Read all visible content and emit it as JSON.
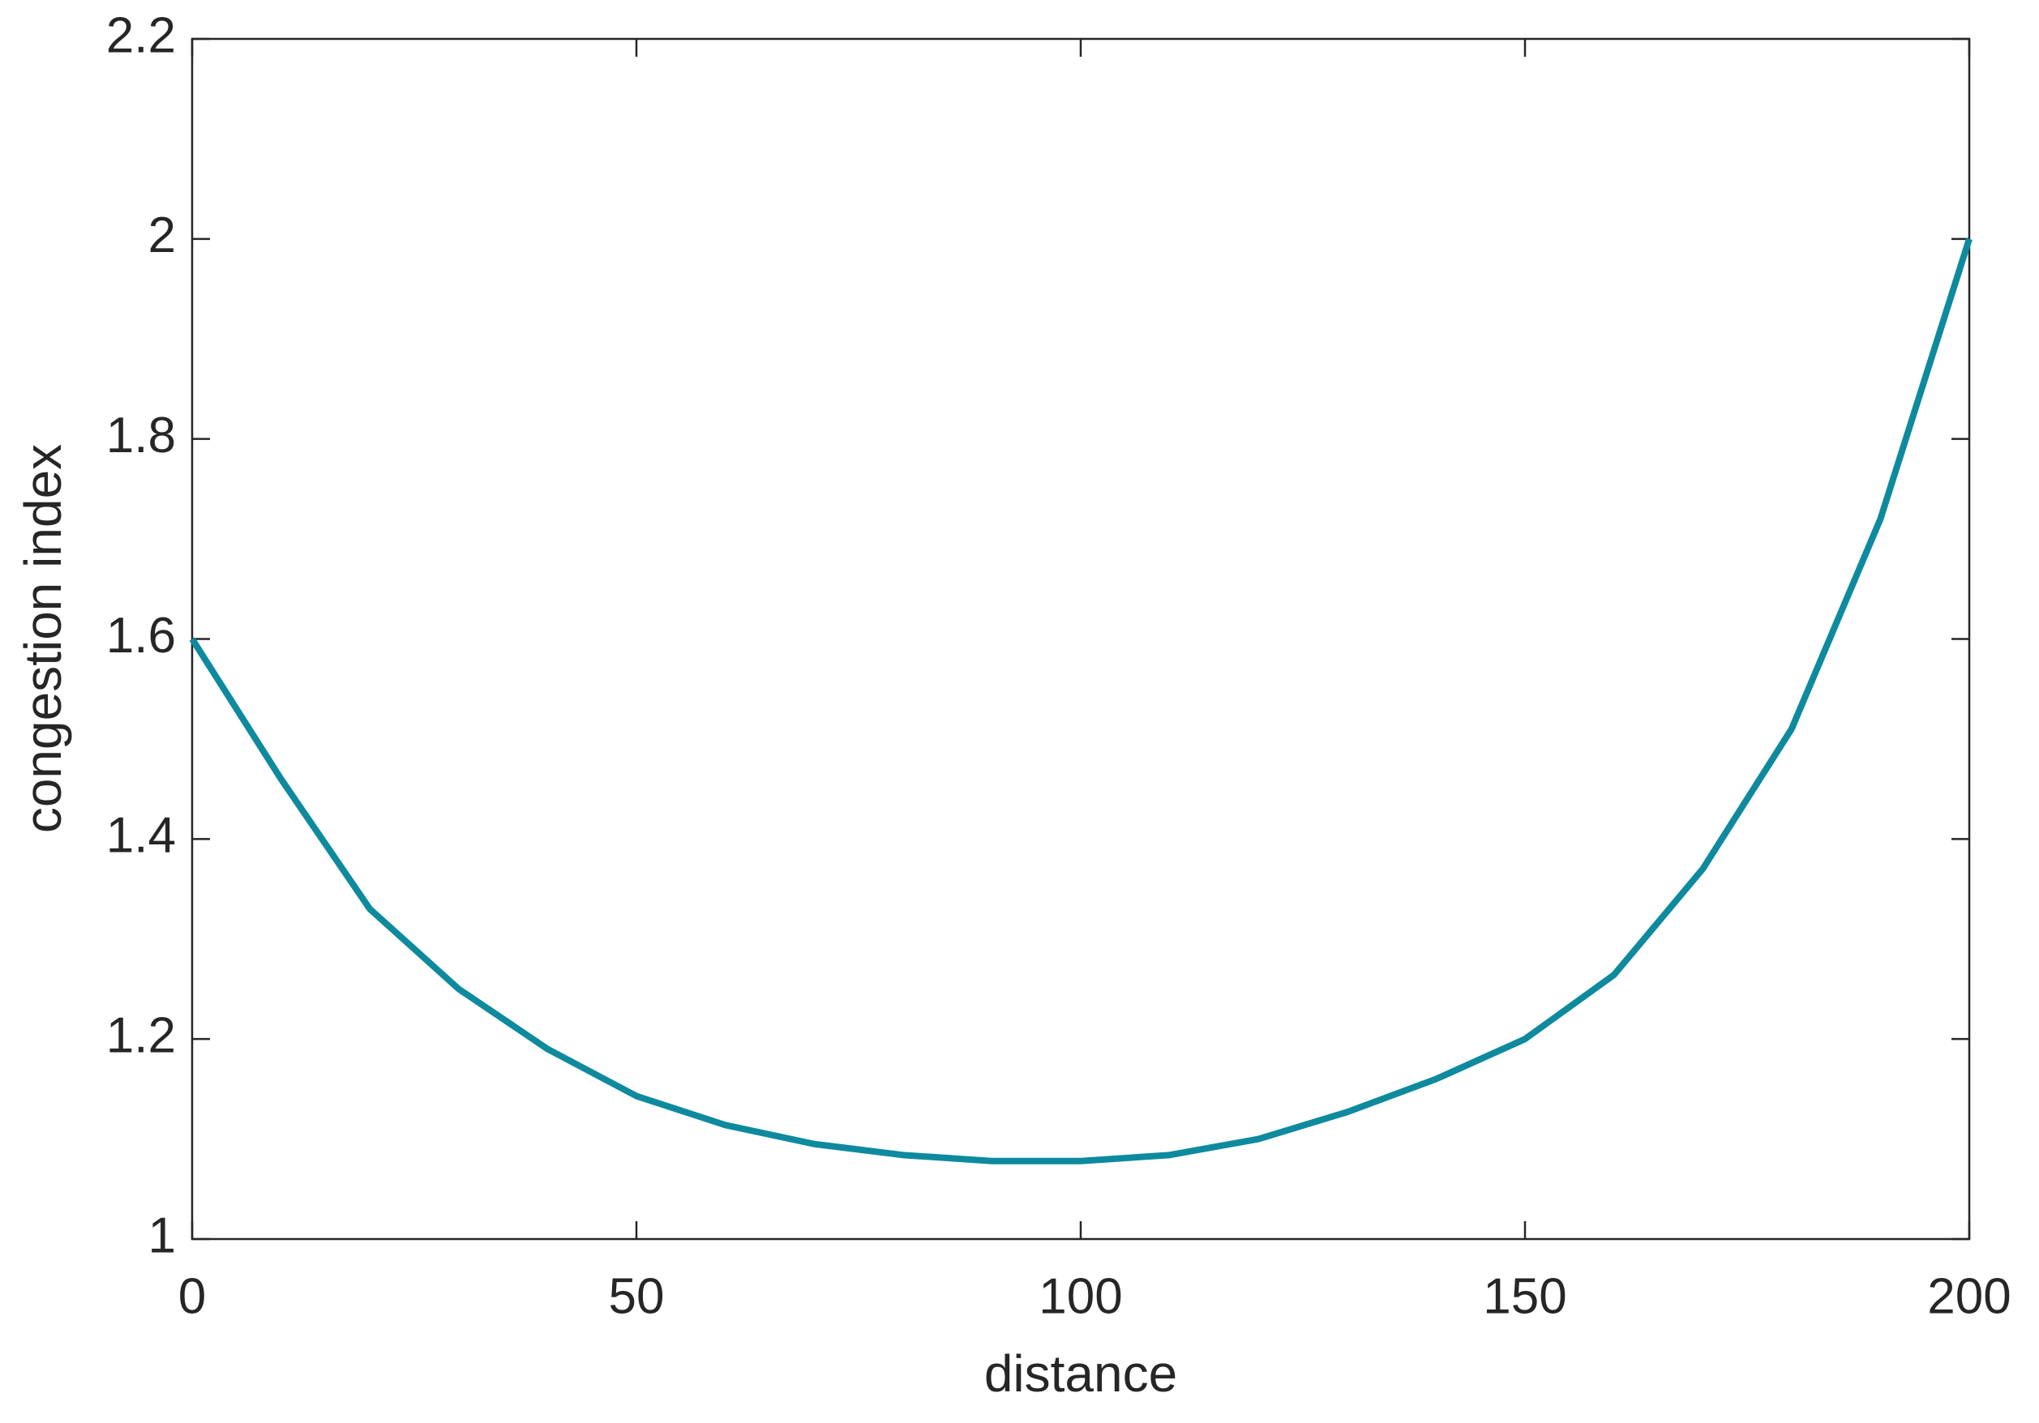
{
  "chart_data": {
    "type": "line",
    "x_label": "distance",
    "y_label": "congestion index",
    "x": [
      0,
      10,
      20,
      30,
      40,
      50,
      60,
      70,
      80,
      90,
      100,
      110,
      120,
      130,
      140,
      150,
      160,
      170,
      180,
      190,
      200
    ],
    "series": [
      {
        "color": "#0e8a9e",
        "values": [
          1.6,
          1.46,
          1.33,
          1.25,
          1.19,
          1.143,
          1.114,
          1.095,
          1.084,
          1.078,
          1.078,
          1.084,
          1.1,
          1.127,
          1.16,
          1.2,
          1.264,
          1.37,
          1.51,
          1.72,
          2.0
        ]
      }
    ],
    "xlim": [
      0,
      200
    ],
    "xticks": [
      0,
      50,
      100,
      150,
      200
    ],
    "ylim": [
      1,
      2.2
    ],
    "yticks": [
      1,
      1.2,
      1.4,
      1.6,
      1.8,
      2,
      2.2
    ],
    "grid": false,
    "box": true
  }
}
